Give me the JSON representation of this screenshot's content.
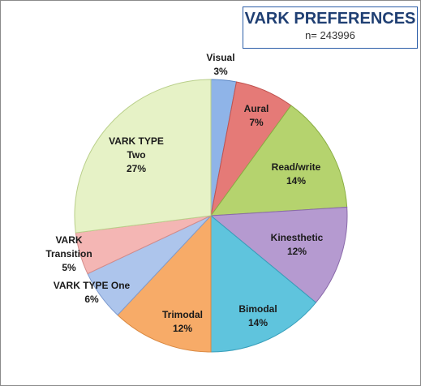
{
  "chart_data": {
    "type": "pie",
    "title": "VARK PREFERENCES",
    "subtitle": "n= 243996",
    "slices": [
      {
        "label_lines": [
          "Visual"
        ],
        "percent_label": "3%",
        "value": 3,
        "color": "#8fb4e8",
        "stroke": "#5a86c4"
      },
      {
        "label_lines": [
          "Aural"
        ],
        "percent_label": "7%",
        "value": 7,
        "color": "#e57a77",
        "stroke": "#c05350"
      },
      {
        "label_lines": [
          "Read/write"
        ],
        "percent_label": "14%",
        "value": 14,
        "color": "#b5d36e",
        "stroke": "#8aae44"
      },
      {
        "label_lines": [
          "Kinesthetic"
        ],
        "percent_label": "12%",
        "value": 12,
        "color": "#b59ad0",
        "stroke": "#8a6aaa"
      },
      {
        "label_lines": [
          "Bimodal"
        ],
        "percent_label": "14%",
        "value": 14,
        "color": "#5fc4dd",
        "stroke": "#389fbb"
      },
      {
        "label_lines": [
          "Trimodal"
        ],
        "percent_label": "12%",
        "value": 12,
        "color": "#f7ab68",
        "stroke": "#d98840"
      },
      {
        "label_lines": [
          "VARK TYPE One"
        ],
        "percent_label": "6%",
        "value": 6,
        "color": "#adc5ec",
        "stroke": "#7d9bcf"
      },
      {
        "label_lines": [
          "VARK",
          "Transition"
        ],
        "percent_label": "5%",
        "value": 5,
        "color": "#f4b6b4",
        "stroke": "#d48b89"
      },
      {
        "label_lines": [
          "VARK TYPE",
          "Two"
        ],
        "percent_label": "27%",
        "value": 27,
        "color": "#e6f2c6",
        "stroke": "#b9cf8a"
      }
    ],
    "legend": "none"
  }
}
